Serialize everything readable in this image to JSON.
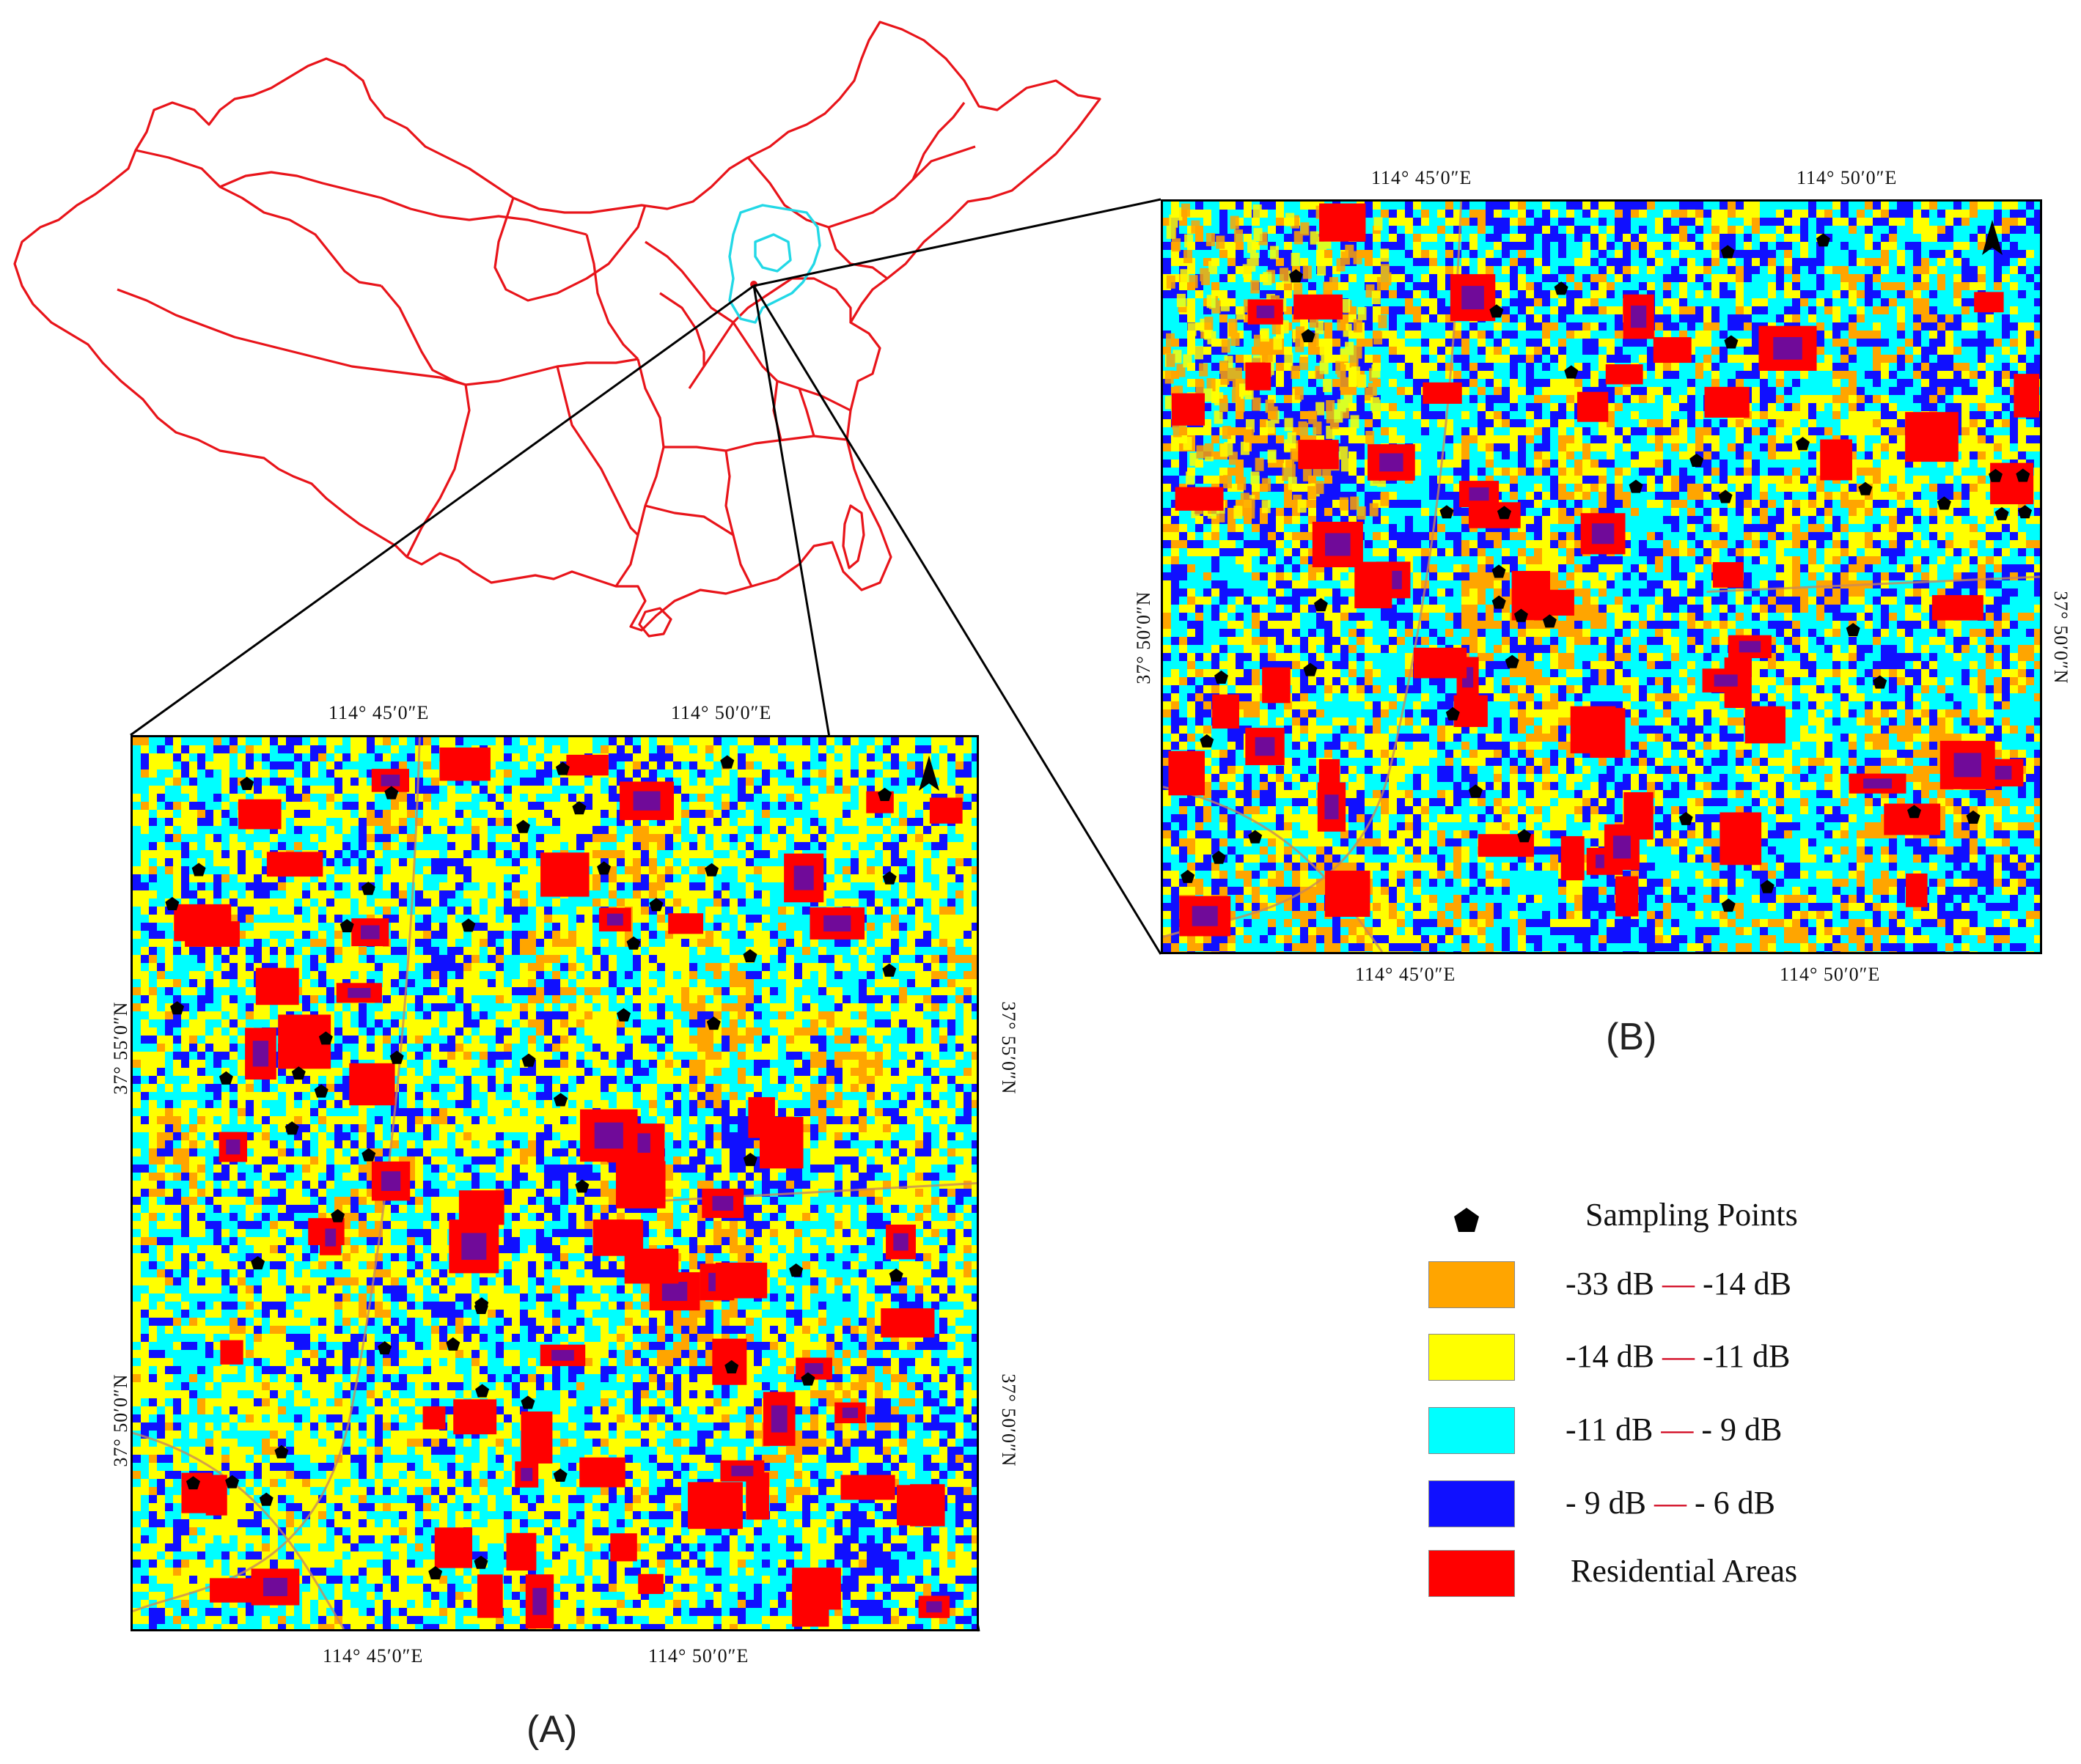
{
  "colors": {
    "china_outline": "#e8141a",
    "hebei_outline": "#22d8e6",
    "leader_lines": "#000000",
    "class_orange": "#ffa500",
    "class_yellow": "#ffff00",
    "class_cyan": "#00ffff",
    "class_blue": "#1010ff",
    "class_red": "#ff0000",
    "sampling_point": "#000000"
  },
  "panel_a": {
    "caption": "(A)",
    "top_tick_1": "114° 45′0″E",
    "top_tick_2": "114° 50′0″E",
    "bottom_tick_1": "114° 45′0″E",
    "bottom_tick_2": "114° 50′0″E",
    "left_tick_1": "37° 55′0″N",
    "left_tick_2": "37° 50′0″N",
    "right_tick_1": "37° 55′0″N",
    "right_tick_2": "37° 50′0″N",
    "north_label": "N"
  },
  "panel_b": {
    "caption": "(B)",
    "top_tick_1": "114° 45′0″E",
    "top_tick_2": "114° 50′0″E",
    "bottom_tick_1": "114° 45′0″E",
    "bottom_tick_2": "114° 50′0″E",
    "left_tick_1": "37° 50′0″N",
    "right_tick_1": "37° 50′0″N"
  },
  "legend": {
    "sampling_points": "Sampling Points",
    "items": [
      {
        "from": "-33 dB",
        "to": "-14 dB"
      },
      {
        "from": "-14 dB",
        "to": "-11 dB"
      },
      {
        "from": "-11 dB",
        "to": "- 9 dB"
      },
      {
        "from": "- 9 dB",
        "to": "- 6 dB"
      }
    ],
    "dash": "—",
    "residential": "Residential Areas"
  }
}
